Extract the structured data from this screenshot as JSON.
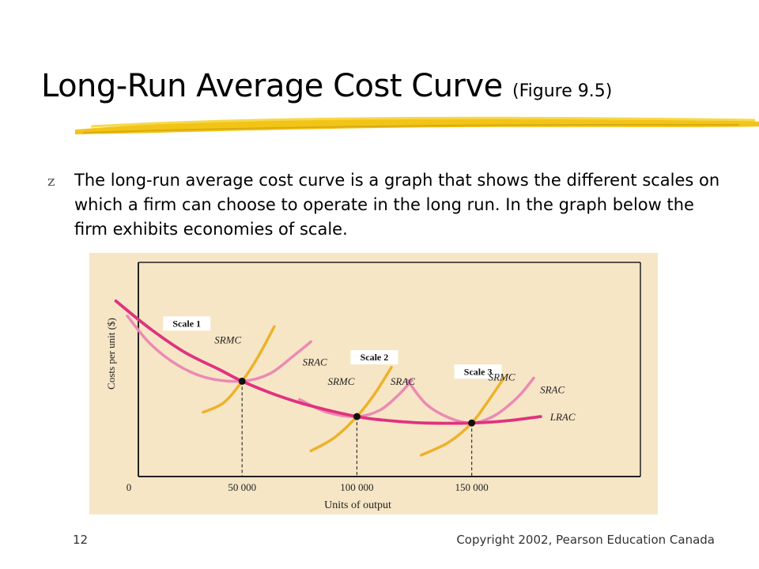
{
  "slide": {
    "title": "Long-Run Average Cost Curve",
    "title_note": "(Figure 9.5)",
    "bullet_symbol": "z",
    "bullet_text": "The long-run average cost curve is a graph that shows the different scales on which a firm can choose to operate in the long run. In the graph below the firm exhibits economies of scale.",
    "page_number": "12",
    "copyright": "Copyright 2002, Pearson Education Canada",
    "colors": {
      "underline": "#f2c417",
      "chart_background": "#f6e6c6",
      "lrac": "#e0327f",
      "srac": "#eb8ab4",
      "srmc": "#edb22a"
    }
  },
  "chart_data": {
    "type": "line",
    "xlabel": "Units of output",
    "ylabel": "Costs per unit ($)",
    "origin_label": "0",
    "xlim": [
      -20000,
      200000
    ],
    "ylim": [
      0,
      10
    ],
    "grid": false,
    "x_ticks": [
      {
        "value": 50000,
        "label": "50 000"
      },
      {
        "value": 100000,
        "label": "100 000"
      },
      {
        "value": 150000,
        "label": "150 000"
      }
    ],
    "series": [
      {
        "name": "LRAC",
        "role": "long-run average cost",
        "points": [
          [
            -5000,
            8.2
          ],
          [
            10000,
            6.9
          ],
          [
            25000,
            5.8
          ],
          [
            40000,
            5.0
          ],
          [
            50000,
            4.45
          ],
          [
            65000,
            3.8
          ],
          [
            80000,
            3.3
          ],
          [
            100000,
            2.8
          ],
          [
            115000,
            2.6
          ],
          [
            130000,
            2.5
          ],
          [
            150000,
            2.5
          ],
          [
            165000,
            2.6
          ],
          [
            180000,
            2.8
          ]
        ]
      }
    ],
    "scales": [
      {
        "label": "Scale 1",
        "quantity": 50000,
        "min_cost": 4.45,
        "srmc": {
          "name": "SRMC",
          "points": [
            [
              33000,
              3.0
            ],
            [
              42000,
              3.45
            ],
            [
              50000,
              4.45
            ],
            [
              57000,
              5.6
            ],
            [
              64000,
              7.0
            ]
          ]
        },
        "srac": {
          "name": "SRAC",
          "points": [
            [
              0,
              7.5
            ],
            [
              10000,
              6.2
            ],
            [
              22000,
              5.2
            ],
            [
              35000,
              4.6
            ],
            [
              50000,
              4.45
            ],
            [
              62000,
              4.8
            ],
            [
              72000,
              5.6
            ],
            [
              80000,
              6.3
            ]
          ]
        }
      },
      {
        "label": "Scale 2",
        "quantity": 100000,
        "min_cost": 2.8,
        "srmc": {
          "name": "SRMC",
          "points": [
            [
              80000,
              1.2
            ],
            [
              90000,
              1.8
            ],
            [
              100000,
              2.8
            ],
            [
              108000,
              3.9
            ],
            [
              115000,
              5.1
            ]
          ]
        },
        "srac": {
          "name": "SRAC",
          "points": [
            [
              75000,
              3.6
            ],
            [
              87000,
              3.0
            ],
            [
              100000,
              2.8
            ],
            [
              110000,
              3.1
            ],
            [
              118000,
              3.8
            ],
            [
              124000,
              4.5
            ]
          ]
        }
      },
      {
        "label": "Scale 3",
        "quantity": 150000,
        "min_cost": 2.5,
        "srmc": {
          "name": "SRMC",
          "points": [
            [
              128000,
              1.0
            ],
            [
              140000,
              1.6
            ],
            [
              150000,
              2.5
            ],
            [
              157000,
              3.5
            ],
            [
              164000,
              4.6
            ]
          ]
        },
        "srac": {
          "name": "SRAC",
          "points": [
            [
              122000,
              4.5
            ],
            [
              130000,
              3.4
            ],
            [
              140000,
              2.75
            ],
            [
              150000,
              2.5
            ],
            [
              160000,
              2.85
            ],
            [
              170000,
              3.7
            ],
            [
              177000,
              4.6
            ]
          ]
        }
      }
    ],
    "labels": {
      "lrac": "LRAC",
      "srmc": "SRMC",
      "srac": "SRAC"
    }
  }
}
